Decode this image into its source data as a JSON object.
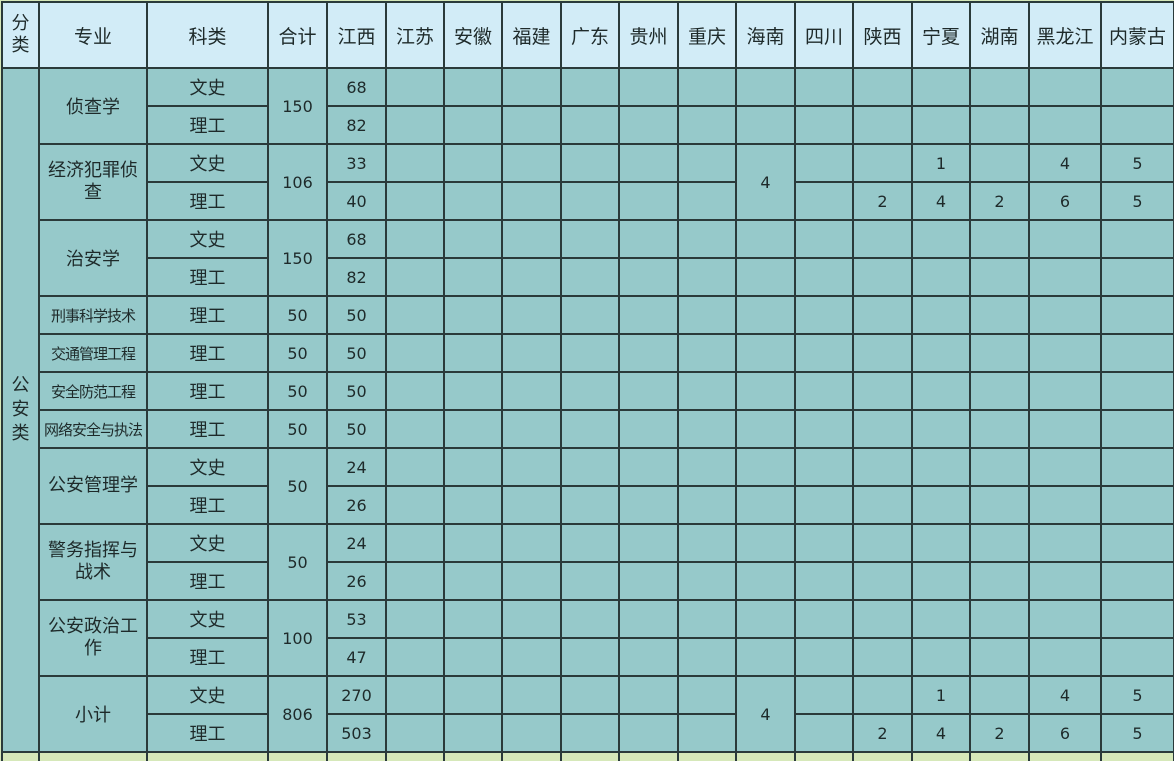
{
  "header": {
    "category": "分类",
    "major": "专业",
    "type": "科类",
    "total": "合计",
    "provinces": [
      "江西",
      "江苏",
      "安徽",
      "福建",
      "广东",
      "贵州",
      "重庆",
      "海南",
      "四川",
      "陕西",
      "宁夏",
      "湖南",
      "黑龙江",
      "内蒙古"
    ]
  },
  "category": "公安类",
  "majors": [
    {
      "name": "侦查学",
      "total": "150",
      "rows": [
        {
          "type": "文史",
          "values": [
            "68",
            "",
            "",
            "",
            "",
            "",
            "",
            "",
            "",
            "",
            "",
            "",
            "",
            ""
          ]
        },
        {
          "type": "理工",
          "values": [
            "82",
            "",
            "",
            "",
            "",
            "",
            "",
            "",
            "",
            "",
            "",
            "",
            "",
            ""
          ]
        }
      ]
    },
    {
      "name": "经济犯罪侦查",
      "total": "106",
      "merged": {
        "col": 7,
        "value": "4"
      },
      "rows": [
        {
          "type": "文史",
          "values": [
            "33",
            "",
            "",
            "",
            "",
            "",
            "",
            "",
            "",
            "",
            "1",
            "",
            "4",
            "5"
          ]
        },
        {
          "type": "理工",
          "values": [
            "40",
            "",
            "",
            "",
            "",
            "",
            "",
            "",
            "",
            "2",
            "4",
            "2",
            "6",
            "5"
          ]
        }
      ]
    },
    {
      "name": "治安学",
      "total": "150",
      "rows": [
        {
          "type": "文史",
          "values": [
            "68",
            "",
            "",
            "",
            "",
            "",
            "",
            "",
            "",
            "",
            "",
            "",
            "",
            ""
          ]
        },
        {
          "type": "理工",
          "values": [
            "82",
            "",
            "",
            "",
            "",
            "",
            "",
            "",
            "",
            "",
            "",
            "",
            "",
            ""
          ]
        }
      ]
    },
    {
      "name": "刑事科学技术",
      "total": "50",
      "small": true,
      "rows": [
        {
          "type": "理工",
          "values": [
            "50",
            "",
            "",
            "",
            "",
            "",
            "",
            "",
            "",
            "",
            "",
            "",
            "",
            ""
          ]
        }
      ]
    },
    {
      "name": "交通管理工程",
      "total": "50",
      "small": true,
      "rows": [
        {
          "type": "理工",
          "values": [
            "50",
            "",
            "",
            "",
            "",
            "",
            "",
            "",
            "",
            "",
            "",
            "",
            "",
            ""
          ]
        }
      ]
    },
    {
      "name": "安全防范工程",
      "total": "50",
      "small": true,
      "rows": [
        {
          "type": "理工",
          "values": [
            "50",
            "",
            "",
            "",
            "",
            "",
            "",
            "",
            "",
            "",
            "",
            "",
            "",
            ""
          ]
        }
      ]
    },
    {
      "name": "网络安全与执法",
      "total": "50",
      "small": true,
      "rows": [
        {
          "type": "理工",
          "values": [
            "50",
            "",
            "",
            "",
            "",
            "",
            "",
            "",
            "",
            "",
            "",
            "",
            "",
            ""
          ]
        }
      ]
    },
    {
      "name": "公安管理学",
      "total": "50",
      "rows": [
        {
          "type": "文史",
          "values": [
            "24",
            "",
            "",
            "",
            "",
            "",
            "",
            "",
            "",
            "",
            "",
            "",
            "",
            ""
          ]
        },
        {
          "type": "理工",
          "values": [
            "26",
            "",
            "",
            "",
            "",
            "",
            "",
            "",
            "",
            "",
            "",
            "",
            "",
            ""
          ]
        }
      ]
    },
    {
      "name": "警务指挥与战术",
      "total": "50",
      "rows": [
        {
          "type": "文史",
          "values": [
            "24",
            "",
            "",
            "",
            "",
            "",
            "",
            "",
            "",
            "",
            "",
            "",
            "",
            ""
          ]
        },
        {
          "type": "理工",
          "values": [
            "26",
            "",
            "",
            "",
            "",
            "",
            "",
            "",
            "",
            "",
            "",
            "",
            "",
            ""
          ]
        }
      ]
    },
    {
      "name": "公安政治工作",
      "total": "100",
      "rows": [
        {
          "type": "文史",
          "values": [
            "53",
            "",
            "",
            "",
            "",
            "",
            "",
            "",
            "",
            "",
            "",
            "",
            "",
            ""
          ]
        },
        {
          "type": "理工",
          "values": [
            "47",
            "",
            "",
            "",
            "",
            "",
            "",
            "",
            "",
            "",
            "",
            "",
            "",
            ""
          ]
        }
      ]
    },
    {
      "name": "小计",
      "total": "806",
      "merged": {
        "col": 7,
        "value": "4"
      },
      "rows": [
        {
          "type": "文史",
          "values": [
            "270",
            "",
            "",
            "",
            "",
            "",
            "",
            "",
            "",
            "",
            "1",
            "",
            "4",
            "5"
          ]
        },
        {
          "type": "理工",
          "values": [
            "503",
            "",
            "",
            "",
            "",
            "",
            "",
            "",
            "",
            "2",
            "4",
            "2",
            "6",
            "5"
          ]
        }
      ]
    }
  ],
  "colors": {
    "header_bg": "#d2ecf7",
    "body_bg": "#96c9ca",
    "footer_bg": "#d6e8b9",
    "border": "#2a3a3a"
  }
}
